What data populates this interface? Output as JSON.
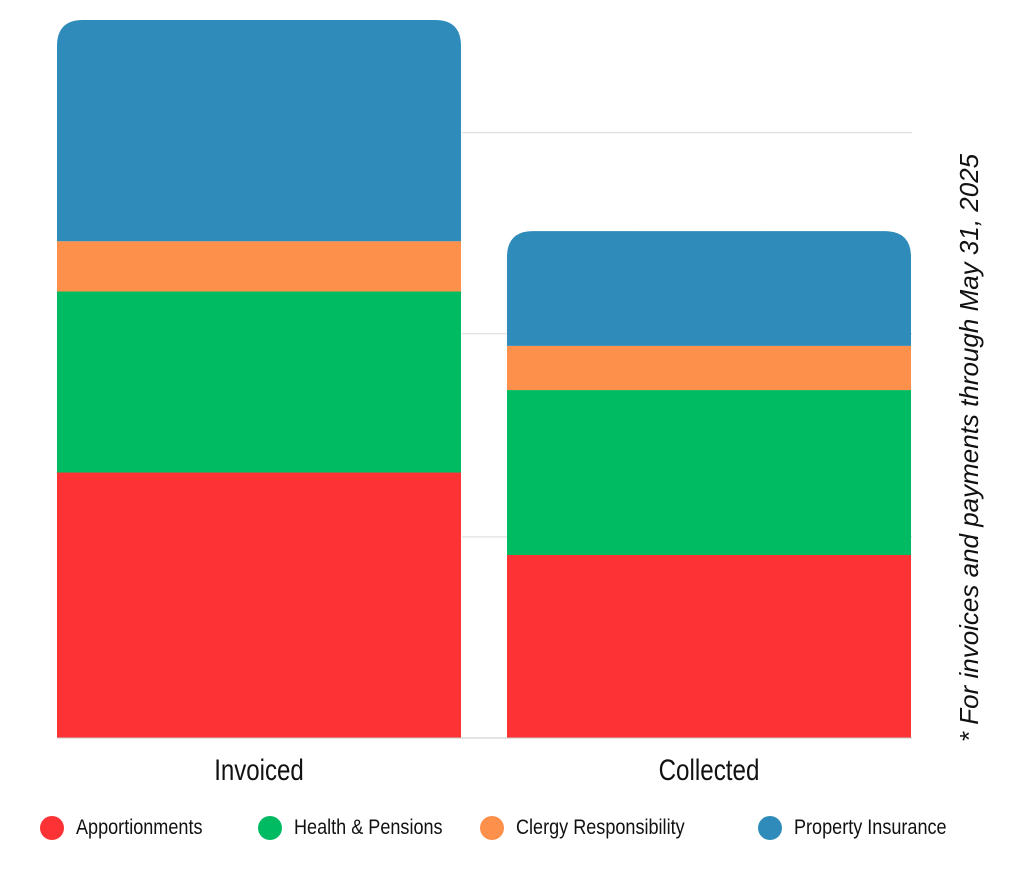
{
  "chart_data": {
    "type": "bar",
    "stacked": true,
    "categories": [
      "Invoiced",
      "Collected"
    ],
    "series": [
      {
        "name": "Apportionments",
        "color": "#fc3235",
        "values": [
          132,
          91
        ]
      },
      {
        "name": "Health & Pensions",
        "color": "#00bb62",
        "values": [
          90,
          82
        ]
      },
      {
        "name": "Clergy Responsibility",
        "color": "#fd914b",
        "values": [
          25,
          22
        ]
      },
      {
        "name": "Property Insurance",
        "color": "#2e8bba",
        "values": [
          110,
          57
        ]
      }
    ],
    "ylim": [
      0,
      357
    ],
    "gridlines": [
      100,
      201,
      301
    ],
    "grid": true,
    "legend_position": "bottom",
    "note": "* For invoices and payments through May 31, 2025"
  }
}
